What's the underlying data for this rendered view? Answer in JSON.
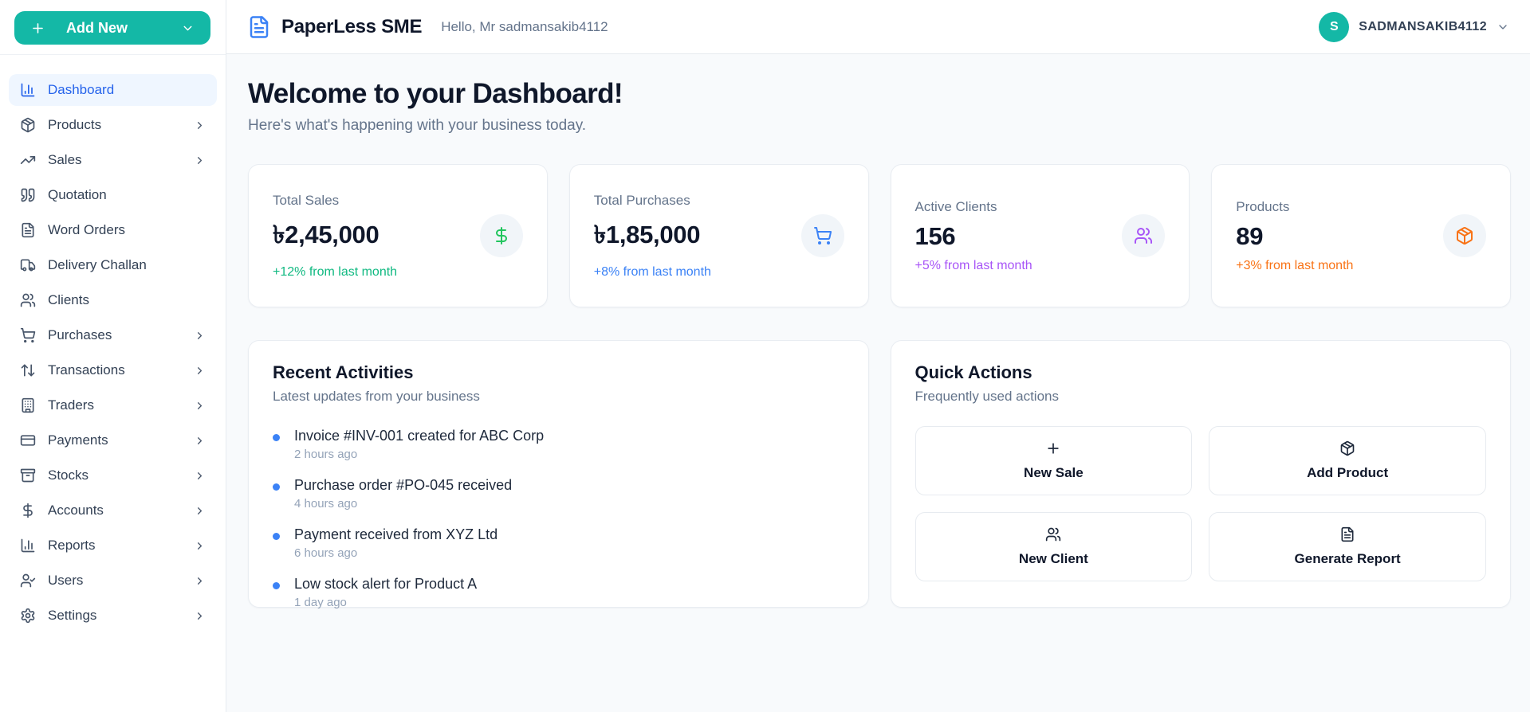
{
  "app": {
    "name": "PaperLess SME",
    "greeting": "Hello, Mr sadmansakib4112"
  },
  "colors": {
    "brand_teal": "#14b8a6",
    "active_blue": "#2563eb",
    "logo_blue": "#3b82f6",
    "green": "#10b981",
    "blue": "#3b82f6",
    "purple": "#a855f7",
    "orange": "#f97316"
  },
  "header": {
    "user": {
      "initial": "S",
      "name": "SADMANSAKIB4112",
      "menu_icon": "chevron-down-icon"
    }
  },
  "sidebar": {
    "add_new": {
      "label": "Add New",
      "left_icon": "plus-icon",
      "right_icon": "chevron-down-icon"
    },
    "items": [
      {
        "label": "Dashboard",
        "icon": "chart-column-icon",
        "active": true,
        "chevron": false
      },
      {
        "label": "Products",
        "icon": "package-icon",
        "active": false,
        "chevron": true
      },
      {
        "label": "Sales",
        "icon": "trending-up-icon",
        "active": false,
        "chevron": true
      },
      {
        "label": "Quotation",
        "icon": "quote-icon",
        "active": false,
        "chevron": false
      },
      {
        "label": "Word Orders",
        "icon": "file-text-icon",
        "active": false,
        "chevron": false
      },
      {
        "label": "Delivery Challan",
        "icon": "truck-icon",
        "active": false,
        "chevron": false
      },
      {
        "label": "Clients",
        "icon": "users-icon",
        "active": false,
        "chevron": false
      },
      {
        "label": "Purchases",
        "icon": "shopping-cart-icon",
        "active": false,
        "chevron": true
      },
      {
        "label": "Transactions",
        "icon": "arrow-up-down-icon",
        "active": false,
        "chevron": true
      },
      {
        "label": "Traders",
        "icon": "building-icon",
        "active": false,
        "chevron": true
      },
      {
        "label": "Payments",
        "icon": "credit-card-icon",
        "active": false,
        "chevron": true
      },
      {
        "label": "Stocks",
        "icon": "archive-icon",
        "active": false,
        "chevron": true
      },
      {
        "label": "Accounts",
        "icon": "dollar-sign-icon",
        "active": false,
        "chevron": true
      },
      {
        "label": "Reports",
        "icon": "chart-column-icon",
        "active": false,
        "chevron": true
      },
      {
        "label": "Users",
        "icon": "user-check-icon",
        "active": false,
        "chevron": true
      },
      {
        "label": "Settings",
        "icon": "settings-icon",
        "active": false,
        "chevron": true
      }
    ]
  },
  "main": {
    "title": "Welcome to your Dashboard!",
    "subtitle": "Here's what's happening with your business today."
  },
  "stats": [
    {
      "label": "Total Sales",
      "value": "৳2,45,000",
      "change": "+12% from last month",
      "change_color": "#10b981",
      "icon": "dollar-sign-icon",
      "icon_color": "#22c55e"
    },
    {
      "label": "Total Purchases",
      "value": "৳1,85,000",
      "change": "+8% from last month",
      "change_color": "#3b82f6",
      "icon": "shopping-cart-icon",
      "icon_color": "#3b82f6"
    },
    {
      "label": "Active Clients",
      "value": "156",
      "change": "+5% from last month",
      "change_color": "#a855f7",
      "icon": "users-icon",
      "icon_color": "#a855f7"
    },
    {
      "label": "Products",
      "value": "89",
      "change": "+3% from last month",
      "change_color": "#f97316",
      "icon": "package-icon",
      "icon_color": "#f97316"
    }
  ],
  "recent_activities": {
    "title": "Recent Activities",
    "subtitle": "Latest updates from your business",
    "items": [
      {
        "title": "Invoice #INV-001 created for ABC Corp",
        "time": "2 hours ago"
      },
      {
        "title": "Purchase order #PO-045 received",
        "time": "4 hours ago"
      },
      {
        "title": "Payment received from XYZ Ltd",
        "time": "6 hours ago"
      },
      {
        "title": "Low stock alert for Product A",
        "time": "1 day ago"
      }
    ]
  },
  "quick_actions": {
    "title": "Quick Actions",
    "subtitle": "Frequently used actions",
    "buttons": [
      {
        "label": "New Sale",
        "icon": "plus-icon"
      },
      {
        "label": "Add Product",
        "icon": "package-icon"
      },
      {
        "label": "New Client",
        "icon": "users-icon"
      },
      {
        "label": "Generate Report",
        "icon": "file-text-icon"
      }
    ]
  }
}
